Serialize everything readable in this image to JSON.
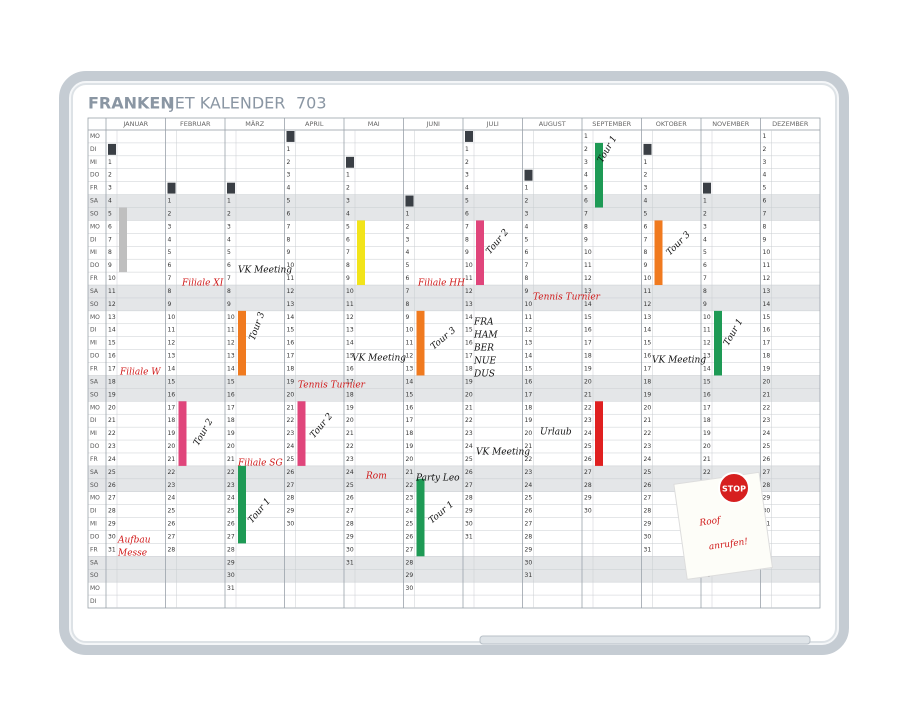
{
  "header": {
    "brand": "FRANKEN",
    "product": "JET KALENDER",
    "model": "703"
  },
  "weekday_rows": [
    "MO",
    "DI",
    "MI",
    "DO",
    "FR",
    "SA",
    "SO",
    "MO",
    "DI",
    "MI",
    "DO",
    "FR",
    "SA",
    "SO",
    "MO",
    "DI",
    "MI",
    "DO",
    "FR",
    "SA",
    "SO",
    "MO",
    "DI",
    "MI",
    "DO",
    "FR",
    "SA",
    "SO",
    "MO",
    "DI",
    "MI",
    "DO",
    "FR",
    "SA",
    "SO",
    "MO",
    "DI"
  ],
  "months": [
    {
      "name": "JANUAR",
      "days": [
        null,
        null,
        1,
        2,
        3,
        4,
        5,
        6,
        7,
        8,
        9,
        10,
        11,
        12,
        13,
        14,
        15,
        16,
        17,
        18,
        19,
        20,
        21,
        22,
        23,
        24,
        25,
        26,
        27,
        28,
        29,
        30,
        31
      ]
    },
    {
      "name": "FEBRUAR",
      "days": [
        null,
        null,
        null,
        null,
        null,
        1,
        2,
        3,
        4,
        5,
        6,
        7,
        8,
        9,
        10,
        11,
        12,
        13,
        14,
        15,
        16,
        17,
        18,
        19,
        20,
        21,
        22,
        23,
        24,
        25,
        26,
        27,
        28
      ]
    },
    {
      "name": "MÄRZ",
      "days": [
        null,
        null,
        null,
        null,
        null,
        1,
        2,
        3,
        4,
        5,
        6,
        7,
        8,
        9,
        10,
        11,
        12,
        13,
        14,
        15,
        16,
        17,
        18,
        19,
        20,
        21,
        22,
        23,
        24,
        25,
        26,
        27,
        28,
        29,
        30,
        31
      ]
    },
    {
      "name": "APRIL",
      "days": [
        null,
        1,
        2,
        3,
        4,
        5,
        6,
        7,
        8,
        9,
        10,
        11,
        12,
        13,
        14,
        15,
        16,
        17,
        18,
        19,
        20,
        21,
        22,
        23,
        24,
        25,
        26,
        27,
        28,
        29,
        30
      ]
    },
    {
      "name": "MAI",
      "days": [
        null,
        null,
        null,
        1,
        2,
        3,
        4,
        5,
        6,
        7,
        8,
        9,
        10,
        11,
        12,
        13,
        14,
        15,
        16,
        17,
        18,
        19,
        20,
        21,
        22,
        23,
        24,
        25,
        26,
        27,
        28,
        29,
        30,
        31
      ]
    },
    {
      "name": "JUNI",
      "days": [
        null,
        null,
        null,
        null,
        null,
        null,
        1,
        2,
        3,
        4,
        5,
        6,
        7,
        8,
        9,
        10,
        11,
        12,
        13,
        14,
        15,
        16,
        17,
        18,
        19,
        20,
        21,
        22,
        23,
        24,
        25,
        26,
        27,
        28,
        29,
        30
      ]
    },
    {
      "name": "JULI",
      "days": [
        null,
        1,
        2,
        3,
        4,
        5,
        6,
        7,
        8,
        9,
        10,
        11,
        12,
        13,
        14,
        15,
        16,
        17,
        18,
        19,
        20,
        21,
        22,
        23,
        24,
        25,
        26,
        27,
        28,
        29,
        30,
        31
      ]
    },
    {
      "name": "AUGUST",
      "days": [
        null,
        null,
        null,
        null,
        1,
        2,
        3,
        4,
        5,
        6,
        7,
        8,
        9,
        10,
        11,
        12,
        13,
        14,
        15,
        16,
        17,
        18,
        19,
        20,
        21,
        22,
        23,
        24,
        25,
        26,
        27,
        28,
        29,
        30,
        31
      ]
    },
    {
      "name": "SEPTEMBER",
      "days": [
        1,
        2,
        3,
        4,
        5,
        6,
        7,
        8,
        9,
        10,
        11,
        12,
        13,
        14,
        15,
        16,
        17,
        18,
        19,
        20,
        21,
        22,
        23,
        24,
        25,
        26,
        27,
        28,
        29,
        30
      ]
    },
    {
      "name": "OKTOBER",
      "days": [
        null,
        null,
        1,
        2,
        3,
        4,
        5,
        6,
        7,
        8,
        9,
        10,
        11,
        12,
        13,
        14,
        15,
        16,
        17,
        18,
        19,
        20,
        21,
        22,
        23,
        24,
        25,
        26,
        27,
        28,
        29,
        30,
        31
      ]
    },
    {
      "name": "NOVEMBER",
      "days": [
        null,
        null,
        null,
        null,
        null,
        1,
        2,
        3,
        4,
        5,
        6,
        7,
        8,
        9,
        10,
        11,
        12,
        13,
        14,
        15,
        16,
        17,
        18,
        19,
        20,
        21,
        22,
        23,
        24,
        25,
        26,
        27,
        28,
        29,
        30
      ]
    },
    {
      "name": "DEZEMBER",
      "days": [
        1,
        2,
        3,
        4,
        5,
        6,
        7,
        8,
        9,
        10,
        11,
        12,
        13,
        14,
        15,
        16,
        17,
        18,
        19,
        20,
        21,
        22,
        23,
        24,
        25,
        26,
        27,
        28,
        29,
        30,
        31
      ]
    }
  ],
  "notes": [
    "Filiale XI",
    "VK Meeting",
    "Filiale HH",
    "Tennis Turnier",
    "Tour 3",
    "Tour 3",
    "VK Meeting",
    "FRA",
    "HAM",
    "BER",
    "NUE",
    "DUS",
    "Filiale W",
    "Tennis Turnier",
    "VK Meeting",
    "Tour 1",
    "Tour 2",
    "Tour 2",
    "VK Meeting",
    "Urlaub",
    "Filiale SG",
    "Rom",
    "Party Leo",
    "Tour 1",
    "Tour 1",
    "Aufbau",
    "Messe",
    "Tour 1",
    "Tour 2",
    "Tour 3"
  ],
  "sticky_note": {
    "sign": "STOP",
    "lines": [
      "Roof",
      "anrufen!"
    ]
  }
}
